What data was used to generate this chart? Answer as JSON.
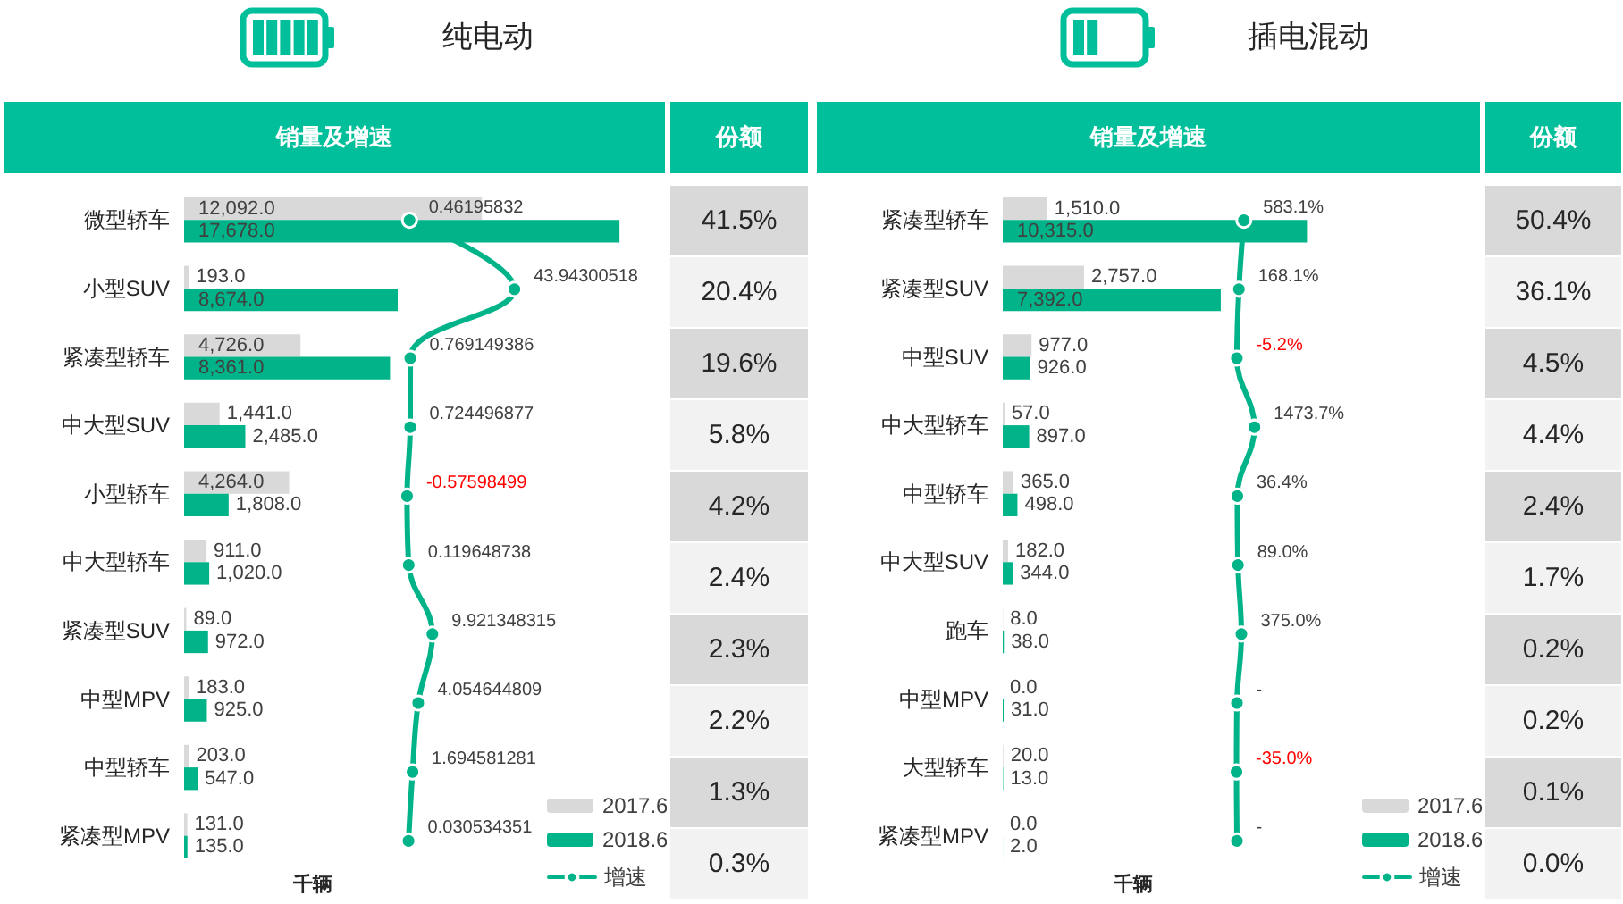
{
  "chart_data": [
    {
      "type": "bar",
      "orientation": "horizontal",
      "title": "纯电动",
      "subtitle": "销量及增速",
      "xlabel": "千辆",
      "categories": [
        "微型轿车",
        "小型SUV",
        "紧凑型轿车",
        "中大型SUV",
        "小型轿车",
        "中大型轿车",
        "紧凑型SUV",
        "中型MPV",
        "中型轿车",
        "紧凑型MPV"
      ],
      "series": [
        {
          "name": "2017.6",
          "color": "#d9d9d9",
          "values": [
            12092,
            193,
            4726,
            1441,
            4264,
            911,
            89,
            183,
            203,
            131
          ],
          "value_labels": [
            "12,092.0",
            "193.0",
            "4,726.0",
            "1,441.0",
            "4,264.0",
            "911.0",
            "89.0",
            "183.0",
            "203.0",
            "131.0"
          ]
        },
        {
          "name": "2018.6",
          "color": "#00b388",
          "values": [
            17678,
            8674,
            8361,
            2485,
            1808,
            1020,
            972,
            925,
            547,
            135
          ],
          "value_labels": [
            "17,678.0",
            "8,674.0",
            "8,361.0",
            "2,485.0",
            "1,808.0",
            "1,020.0",
            "972.0",
            "925.0",
            "547.0",
            "135.0"
          ]
        }
      ],
      "tick_labels": "y",
      "legend": "bottom right"
    },
    {
      "type": "line",
      "orientation": "horizontal",
      "categories": [
        null,
        null,
        null,
        null,
        null,
        null,
        null,
        null,
        null,
        null
      ],
      "series": [
        {
          "name": "增速",
          "color": "#00b388",
          "values": [
            0.46195832,
            43.94300518,
            0.769149386,
            0.724496877,
            -0.57598499,
            0.119648738,
            9.921348315,
            4.054644809,
            1.694581281,
            0.030534351
          ],
          "value_labels": [
            "0.46195832",
            "43.94300518",
            "0.769149386",
            "0.724496877",
            "-0.57598499",
            "0.119648738",
            "9.921348315",
            "4.054644809",
            "1.694581281",
            "0.030534351"
          ]
        }
      ],
      "tick_labels": false,
      "legend": "bottom right",
      "marker": "circle",
      "line_style": "solid"
    },
    {
      "type": "other",
      "title": "份额",
      "annotations": [
        "41.5%",
        "20.4%",
        "19.6%",
        "5.8%",
        "4.2%",
        "2.4%",
        "2.3%",
        "2.2%",
        "1.3%",
        "0.3%"
      ]
    },
    {
      "type": "bar",
      "orientation": "horizontal",
      "title": "插电混动",
      "subtitle": "销量及增速",
      "xlabel": "千辆",
      "categories": [
        "紧凑型轿车",
        "紧凑型SUV",
        "中型SUV",
        "中大型轿车",
        "中型轿车",
        "中大型SUV",
        "跑车",
        "中型MPV",
        "大型轿车",
        "紧凑型MPV"
      ],
      "series": [
        {
          "name": "2017.6",
          "color": "#d9d9d9",
          "values": [
            1510,
            2757,
            977,
            57,
            365,
            182,
            8,
            0,
            20,
            0
          ],
          "value_labels": [
            "1,510.0",
            "2,757.0",
            "977.0",
            "57.0",
            "365.0",
            "182.0",
            "8.0",
            "0.0",
            "20.0",
            "0.0"
          ]
        },
        {
          "name": "2018.6",
          "color": "#00b388",
          "values": [
            10315,
            7392,
            926,
            897,
            498,
            344,
            38,
            31,
            13,
            2
          ],
          "value_labels": [
            "10,315.0",
            "7,392.0",
            "926.0",
            "897.0",
            "498.0",
            "344.0",
            "38.0",
            "31.0",
            "13.0",
            "2.0"
          ]
        }
      ],
      "tick_labels": "y",
      "legend": "bottom right"
    },
    {
      "type": "line",
      "orientation": "horizontal",
      "categories": [
        null,
        null,
        null,
        null,
        null,
        null,
        null,
        null,
        null,
        null
      ],
      "series": [
        {
          "name": "增速",
          "color": "#00b388",
          "values": [
            583.1,
            168.1,
            -5.2,
            1473.7,
            36.4,
            89.0,
            375.0,
            0,
            -35.0,
            0
          ],
          "value_labels": [
            "583.1%",
            "168.1%",
            "-5.2%",
            "1473.7%",
            "36.4%",
            "89.0%",
            "375.0%",
            "-",
            "-35.0%",
            "-"
          ]
        }
      ],
      "tick_labels": false,
      "legend": "bottom right",
      "marker": "circle",
      "line_style": "solid"
    },
    {
      "type": "other",
      "title": "份额",
      "annotations": [
        "50.4%",
        "36.1%",
        "4.5%",
        "4.4%",
        "2.4%",
        "1.7%",
        "0.2%",
        "0.2%",
        "0.1%",
        "0.0%"
      ]
    }
  ]
}
